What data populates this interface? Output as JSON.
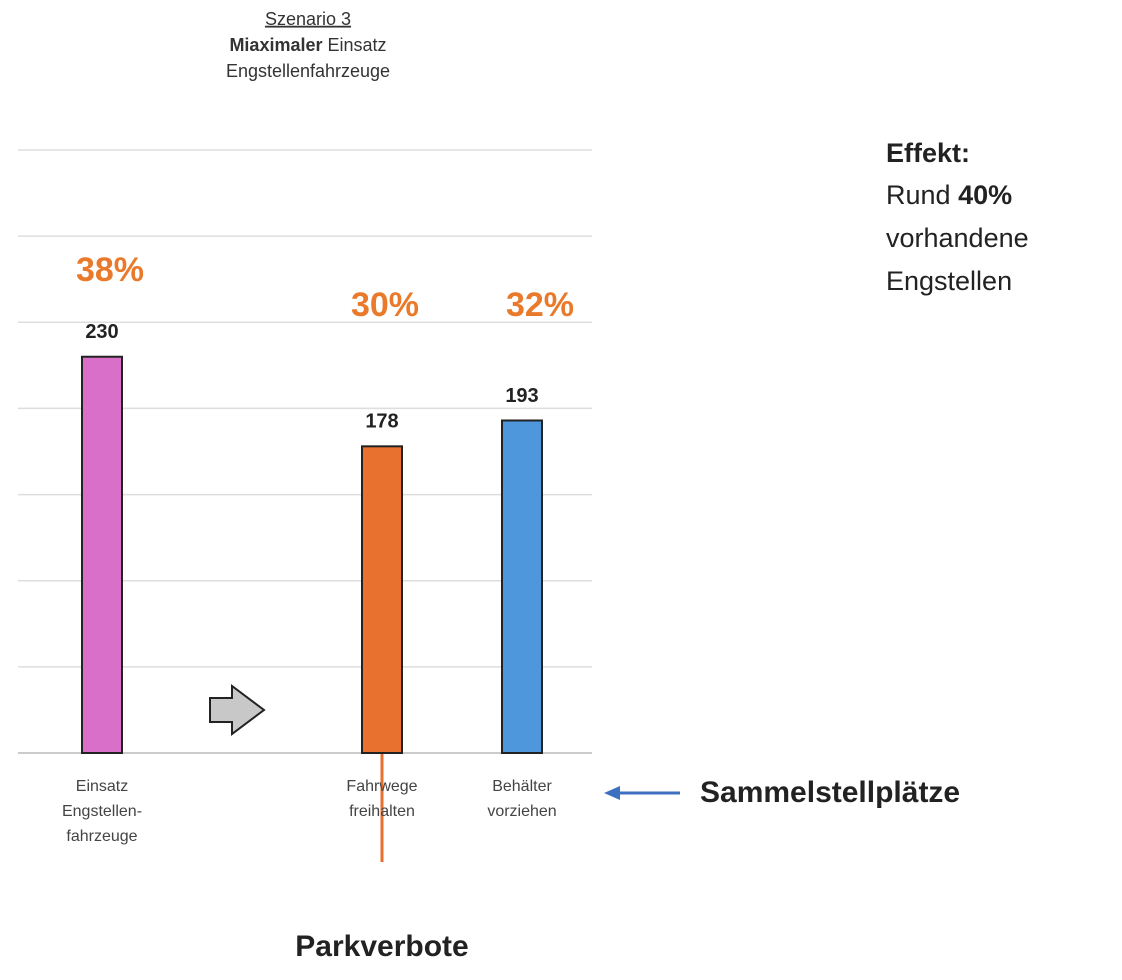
{
  "chart_data": {
    "type": "bar",
    "title": {
      "line1": "Szenario 3",
      "bold": "Miaximaler",
      "rest": "Einsatz",
      "line3": "Engstellenfahrzeuge"
    },
    "categories": [
      [
        "Einsatz",
        "Engstellen-",
        "fahrzeuge"
      ],
      null,
      [
        "Fahrwege",
        "freihalten"
      ],
      [
        "Behälter",
        "vorziehen"
      ]
    ],
    "values": [
      230,
      null,
      178,
      193
    ],
    "colors": [
      "#d96fc8",
      null,
      "#e8712f",
      "#4f97dc"
    ],
    "percent_labels": [
      "38%",
      null,
      "30%",
      "32%"
    ],
    "ylim": [
      0,
      350
    ],
    "yticks": [
      0,
      50,
      100,
      150,
      200,
      250,
      300,
      350
    ],
    "grid": true,
    "annotations": {
      "bottom": "Parkverbote",
      "right": "Sammelstellplätze"
    },
    "effect": {
      "heading": "Effekt:",
      "line1_a": "Rund ",
      "line1_b": "40%",
      "line2": "vorhandene",
      "line3": "Engstellen "
    }
  }
}
